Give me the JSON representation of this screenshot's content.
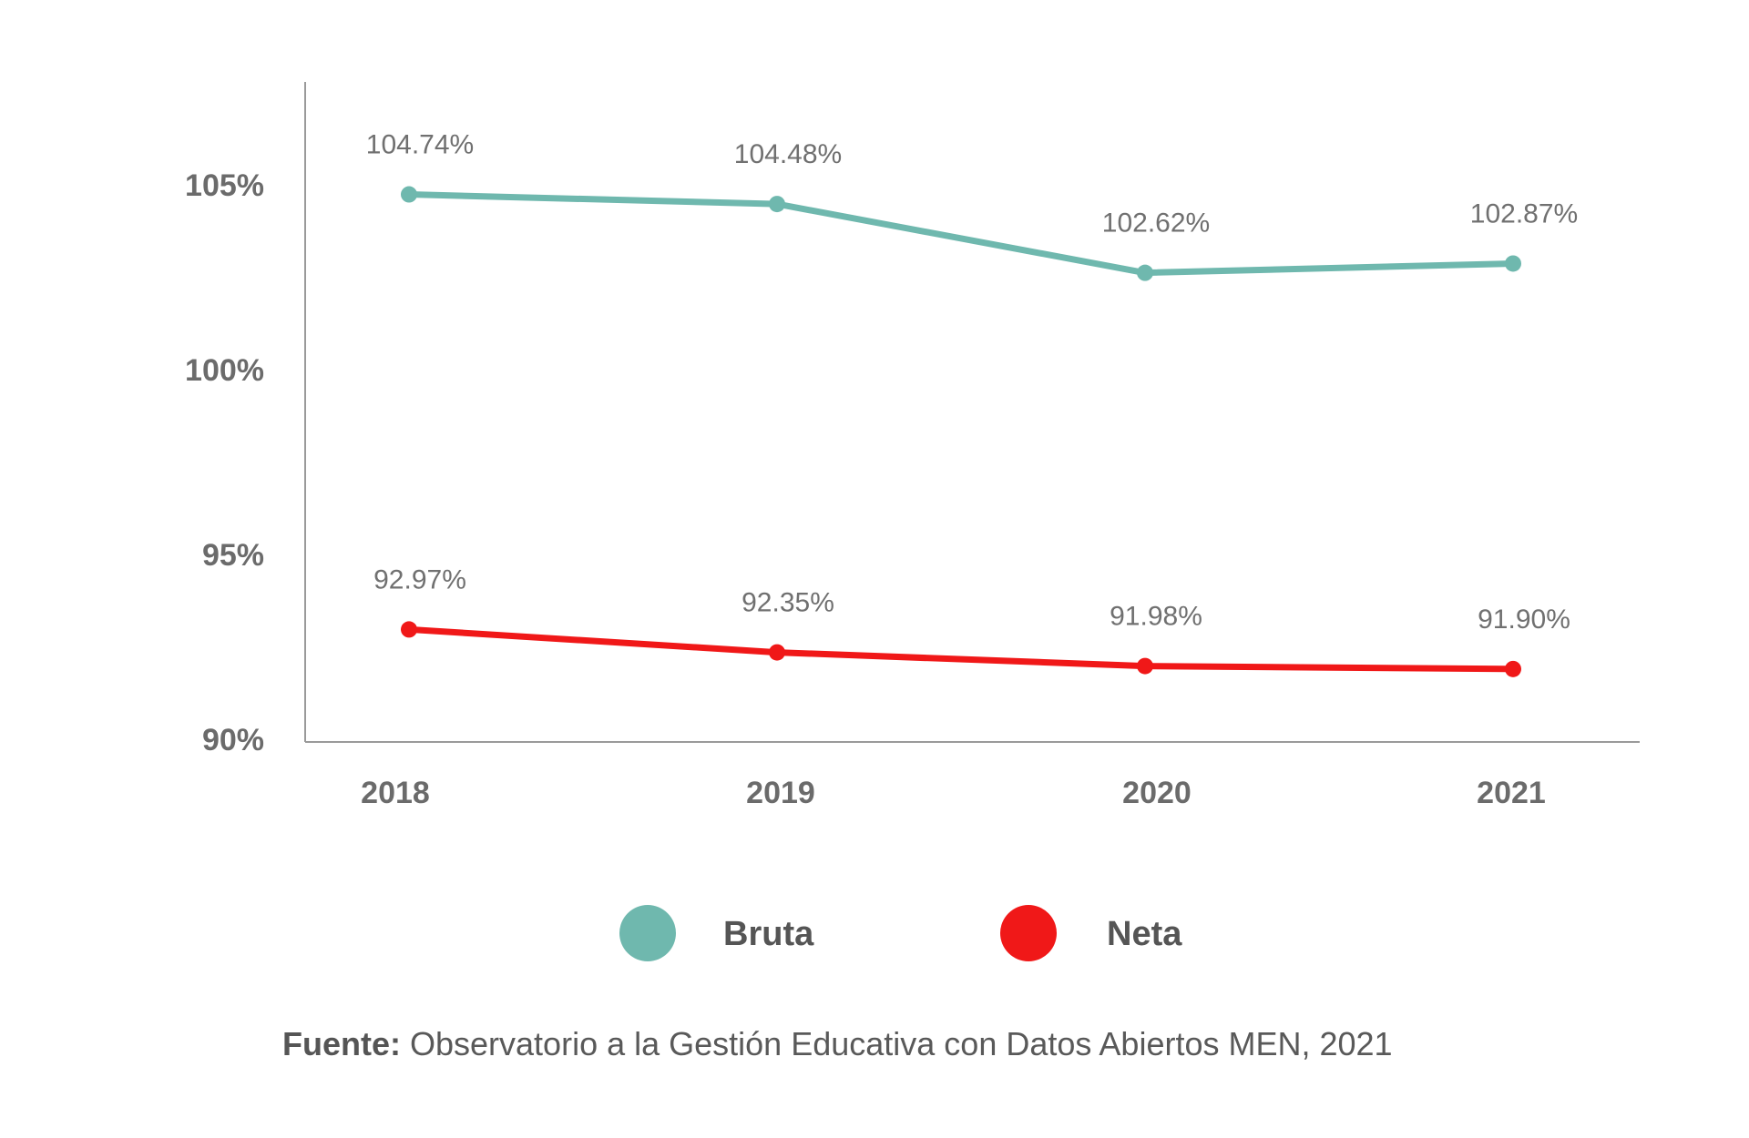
{
  "chart_data": {
    "type": "line",
    "categories": [
      "2018",
      "2019",
      "2020",
      "2021"
    ],
    "ylim": [
      90,
      107.5
    ],
    "yticks": [
      90,
      95,
      100,
      105
    ],
    "ytick_labels": [
      "90%",
      "95%",
      "100%",
      "105%"
    ],
    "grid": false,
    "legend_position": "bottom-center",
    "series": [
      {
        "name": "Bruta",
        "color": "#6fb8ae",
        "values": [
          104.74,
          104.48,
          102.62,
          102.87
        ],
        "labels": [
          "104.74%",
          "104.48%",
          "102.62%",
          "102.87%"
        ]
      },
      {
        "name": "Neta",
        "color": "#f01818",
        "values": [
          92.97,
          92.35,
          91.98,
          91.9
        ],
        "labels": [
          "92.97%",
          "92.35%",
          "91.98%",
          "91.90%"
        ]
      }
    ]
  },
  "source": {
    "prefix": "Fuente:",
    "text": " Observatorio a la Gestión Educativa con Datos Abiertos MEN, 2021"
  }
}
